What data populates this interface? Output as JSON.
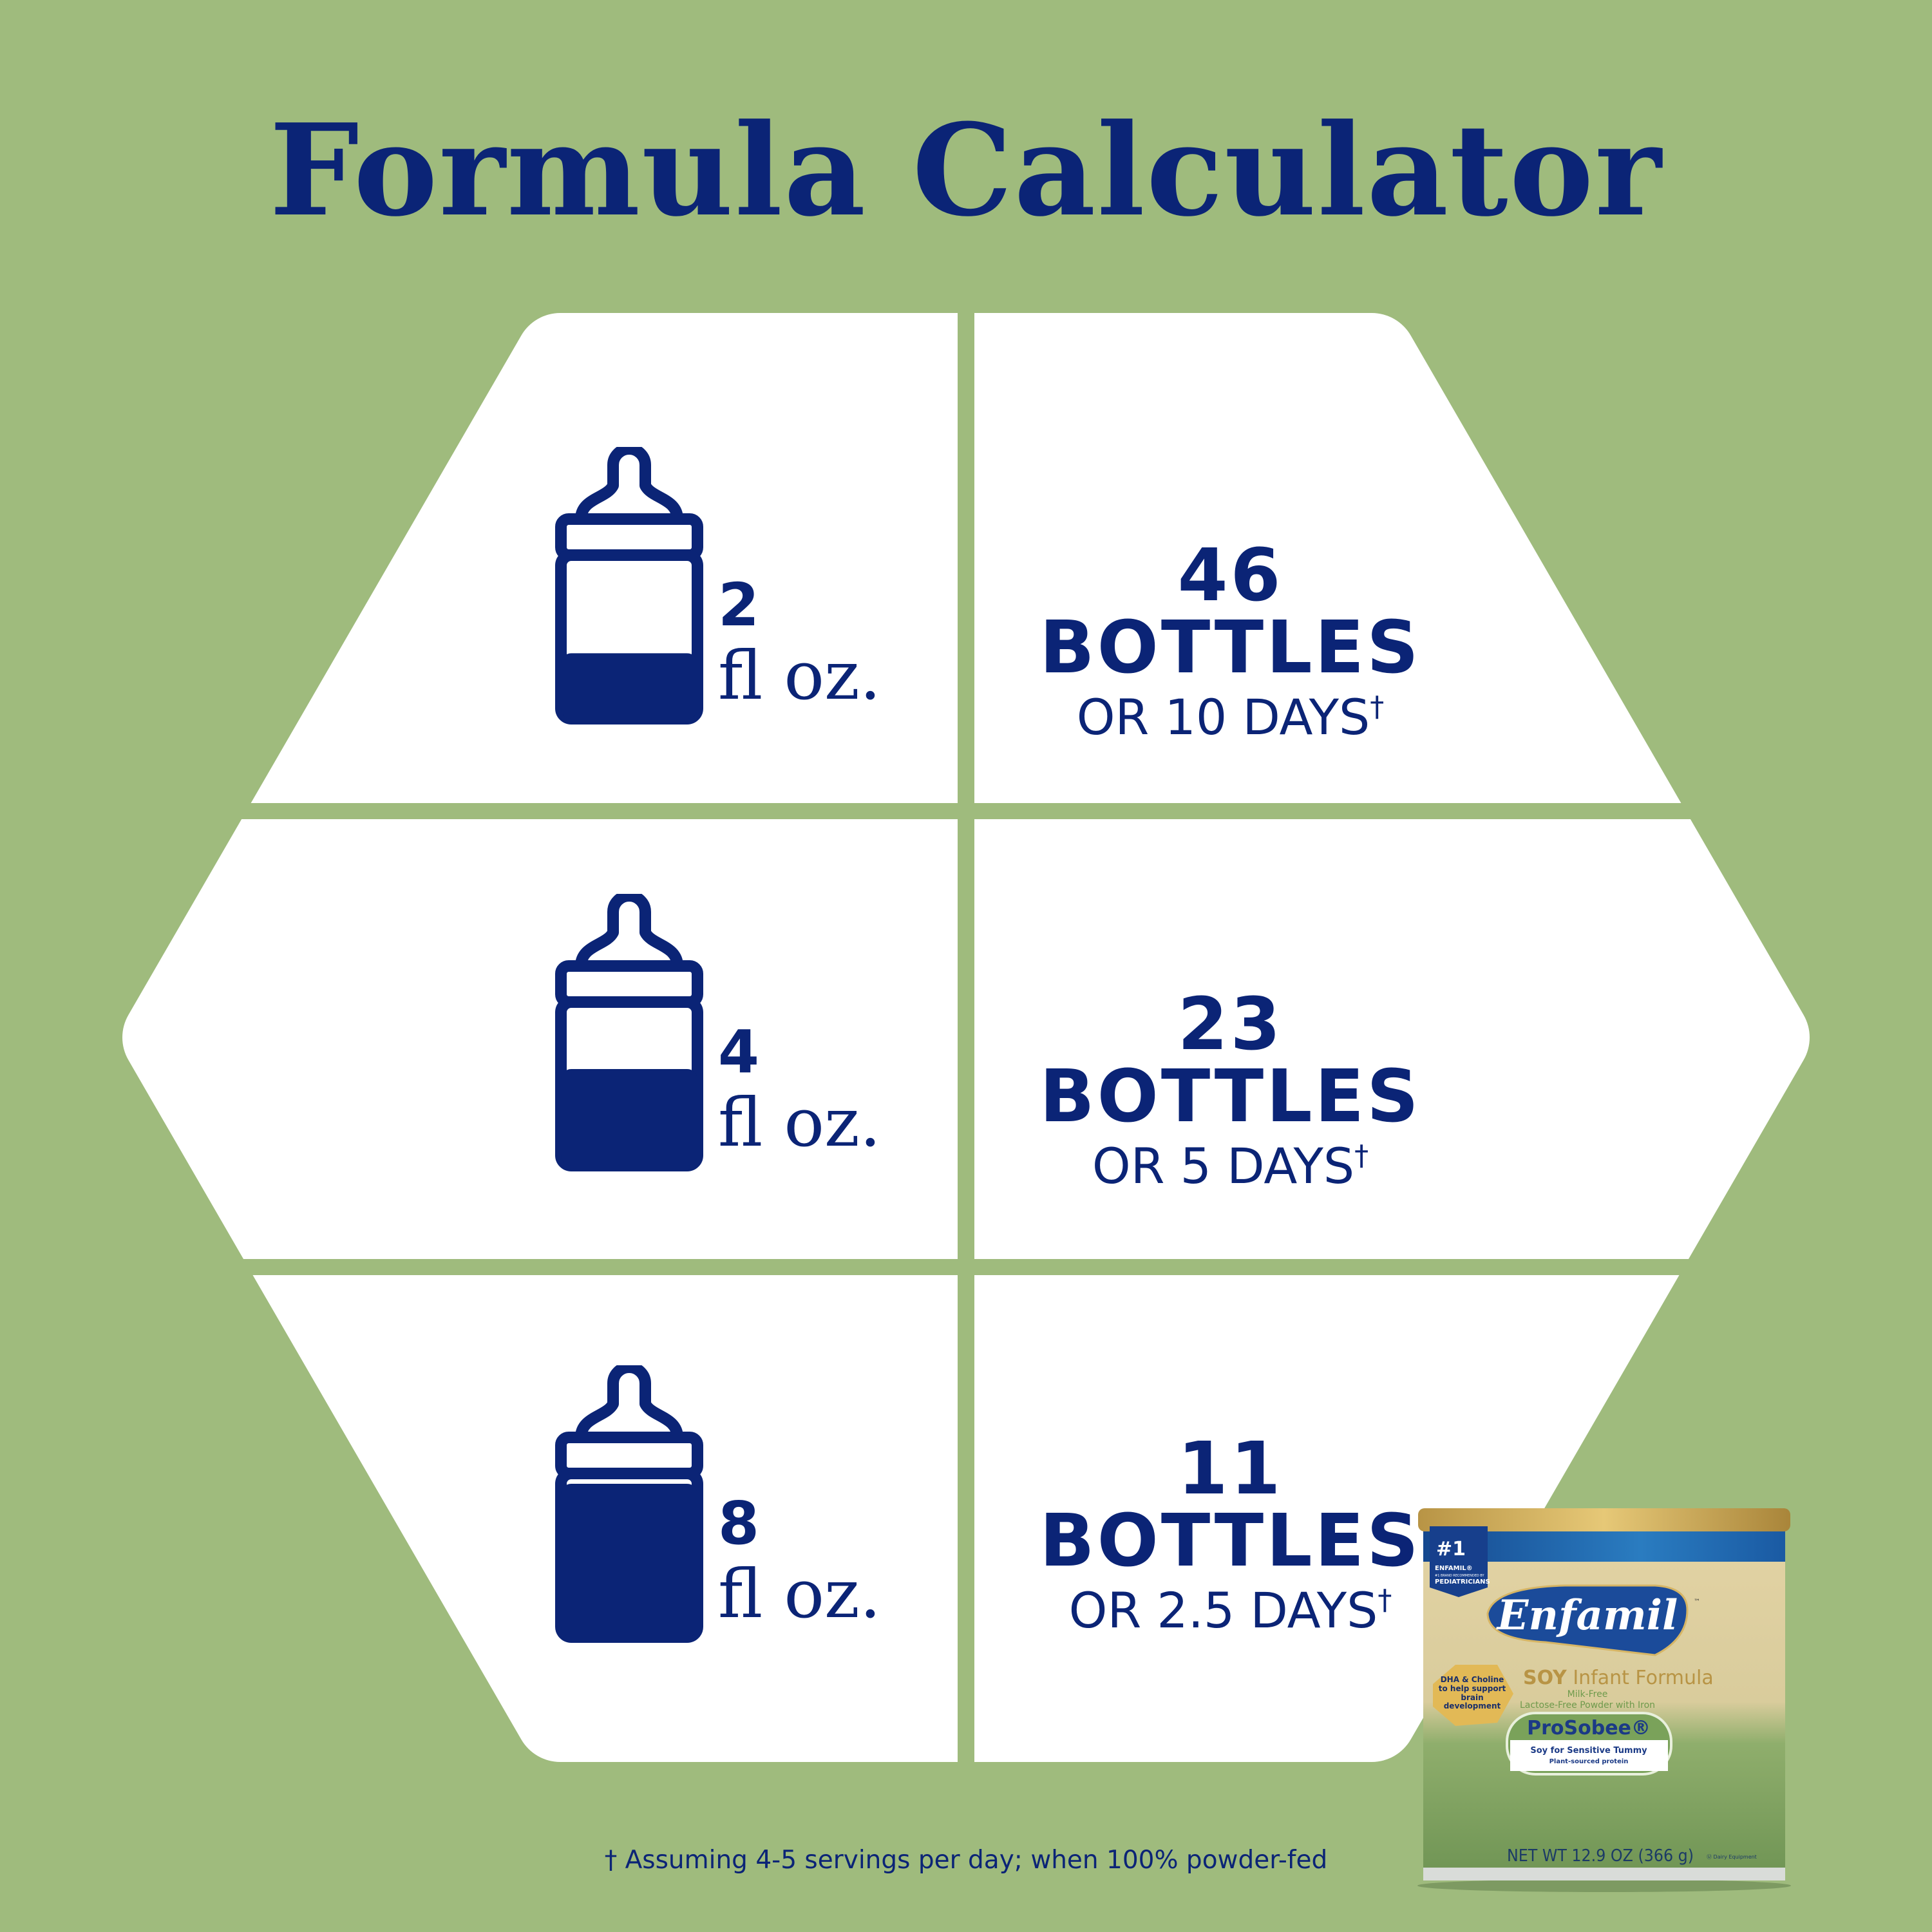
{
  "title": "Formula Calculator",
  "colors": {
    "background": "#9fbb7d",
    "navy": "#0b2476",
    "panel": "#ffffff"
  },
  "rows": [
    {
      "amount": "2",
      "unit": "fl oz.",
      "fill_fraction": 0.38,
      "bottles": "46 BOTTLES",
      "days": "OR 10 DAYS",
      "mark": "†"
    },
    {
      "amount": "4",
      "unit": "fl oz.",
      "fill_fraction": 0.6,
      "bottles": "23 BOTTLES",
      "days": "OR 5 DAYS",
      "mark": "†"
    },
    {
      "amount": "8",
      "unit": "fl oz.",
      "fill_fraction": 1.0,
      "bottles": "11 BOTTLES",
      "days": "OR 2.5 DAYS",
      "mark": "†"
    }
  ],
  "footnote": "†  Assuming 4-5 servings per day; when 100% powder-fed",
  "product": {
    "badge_num": "#1",
    "badge_line1": "ENFAMIL®",
    "badge_line2": "#1 BRAND RECOMMENDED BY",
    "badge_line3": "PEDIATRICIANS",
    "brand": "Enfamil",
    "tm": "™",
    "type_bold": "SOY",
    "type": "Infant Formula",
    "sub1": "Milk-Free",
    "sub2": "Lactose-Free Powder with Iron",
    "claim": "DHA & Choline to help support brain development",
    "name": "ProSobee®",
    "tag1": "Soy for Sensitive Tummy",
    "tag2": "Plant-sourced protein",
    "weight": "NET WT 12.9 OZ (366 g)",
    "dairy": "Ⓤ Dairy Equipment"
  }
}
